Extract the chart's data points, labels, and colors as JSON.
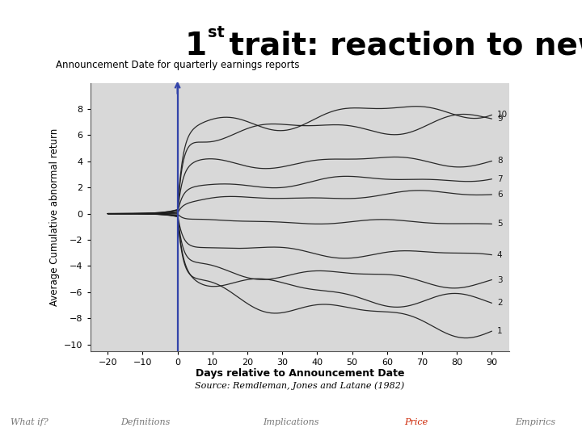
{
  "subtitle": "Announcement Date for quarterly earnings reports",
  "xlabel": "Days relative to Announcement Date",
  "ylabel": "Average Cumulative abnormal return",
  "source": "Source: Remdleman, Jones and Latane (1982)",
  "footer_items": [
    "What if?",
    "Definitions",
    "Implications",
    "Price",
    "Empirics"
  ],
  "footer_colors": [
    "#777777",
    "#777777",
    "#777777",
    "#cc2200",
    "#777777"
  ],
  "xlim": [
    -25,
    95
  ],
  "ylim": [
    -10.5,
    10.0
  ],
  "xticks": [
    -20,
    -10,
    0,
    10,
    20,
    30,
    40,
    50,
    60,
    70,
    80,
    90
  ],
  "yticks": [
    -10,
    -8,
    -6,
    -4,
    -2,
    0,
    2,
    4,
    6,
    8
  ],
  "vline_color": "#3344aa",
  "background_color": "#ffffff",
  "plot_bg_color": "#d8d8d8",
  "decile_final_values": [
    -8.8,
    -7.0,
    -5.2,
    -3.2,
    -0.7,
    1.6,
    2.8,
    4.1,
    7.0,
    8.2
  ],
  "decile_jump_at_0": [
    -4.7,
    -4.3,
    -3.8,
    -2.5,
    -0.5,
    0.8,
    1.9,
    3.8,
    5.8,
    6.2
  ]
}
